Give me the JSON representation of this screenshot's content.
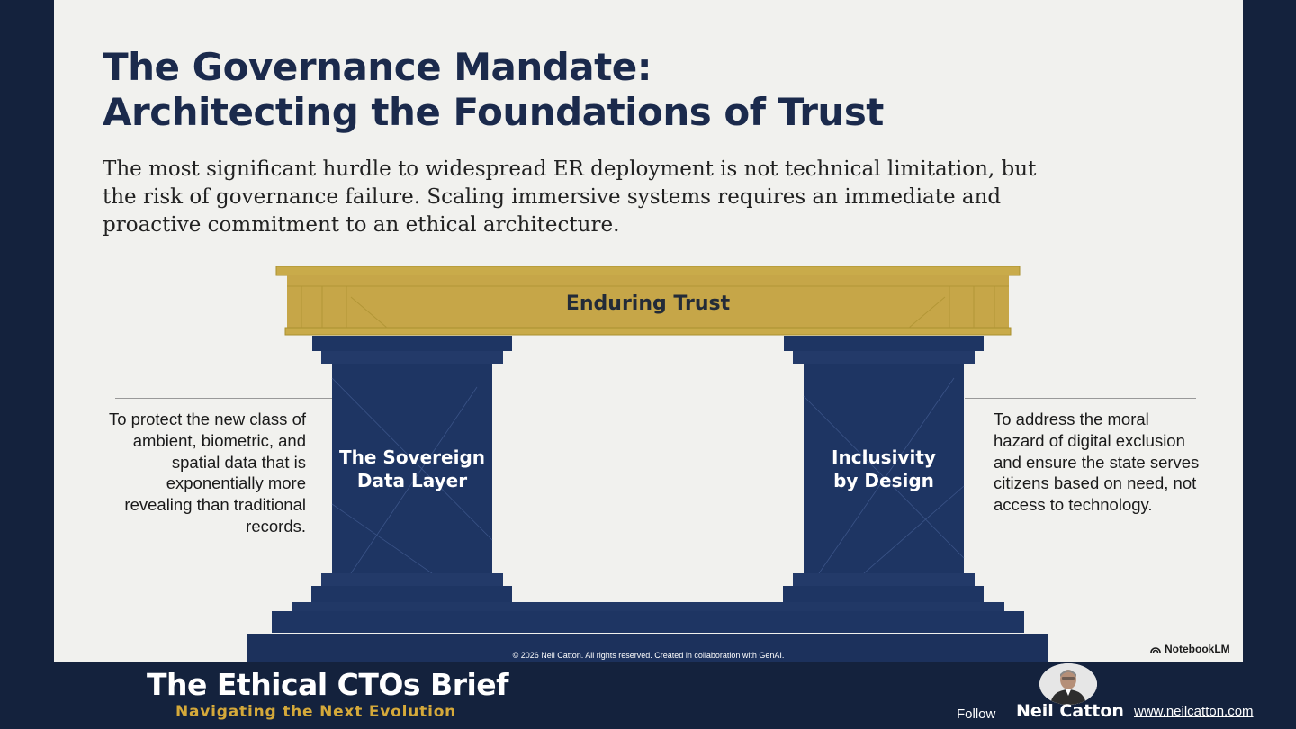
{
  "slide": {
    "title_line1": "The Governance Mandate:",
    "title_line2": "Architecting the Foundations of Trust",
    "intro": "The most significant hurdle to widespread ER deployment is not technical limitation, but the risk of governance failure. Scaling immersive systems requires an immediate and proactive commitment to an ethical architecture.",
    "beam_label": "Enduring Trust",
    "left_pillar": {
      "line1": "The Sovereign",
      "line2": "Data Layer",
      "description": "To protect the new class of ambient, biometric, and spatial data that is exponentially more revealing than traditional records."
    },
    "right_pillar": {
      "line1": "Inclusivity",
      "line2": "by Design",
      "description": "To address the moral hazard of digital exclusion and ensure the state serves citizens based on need, not access to technology."
    },
    "copyright": "© 2026 Neil Catton. All rights reserved. Created in collaboration with GenAI.",
    "watermark": "NotebookLM"
  },
  "footer": {
    "title": "The Ethical CTOs Brief",
    "subtitle": "Navigating the Next Evolution",
    "follow_label": "Follow",
    "author": "Neil Catton",
    "website": "www.neilcatton.com"
  },
  "colors": {
    "navy": "#1e3563",
    "gold": "#c8a94a",
    "background": "#14223d",
    "slide": "#f1f1ee",
    "accent_text": "#d5a93a"
  },
  "icons": [
    "notebooklm-icon",
    "avatar-photo"
  ]
}
